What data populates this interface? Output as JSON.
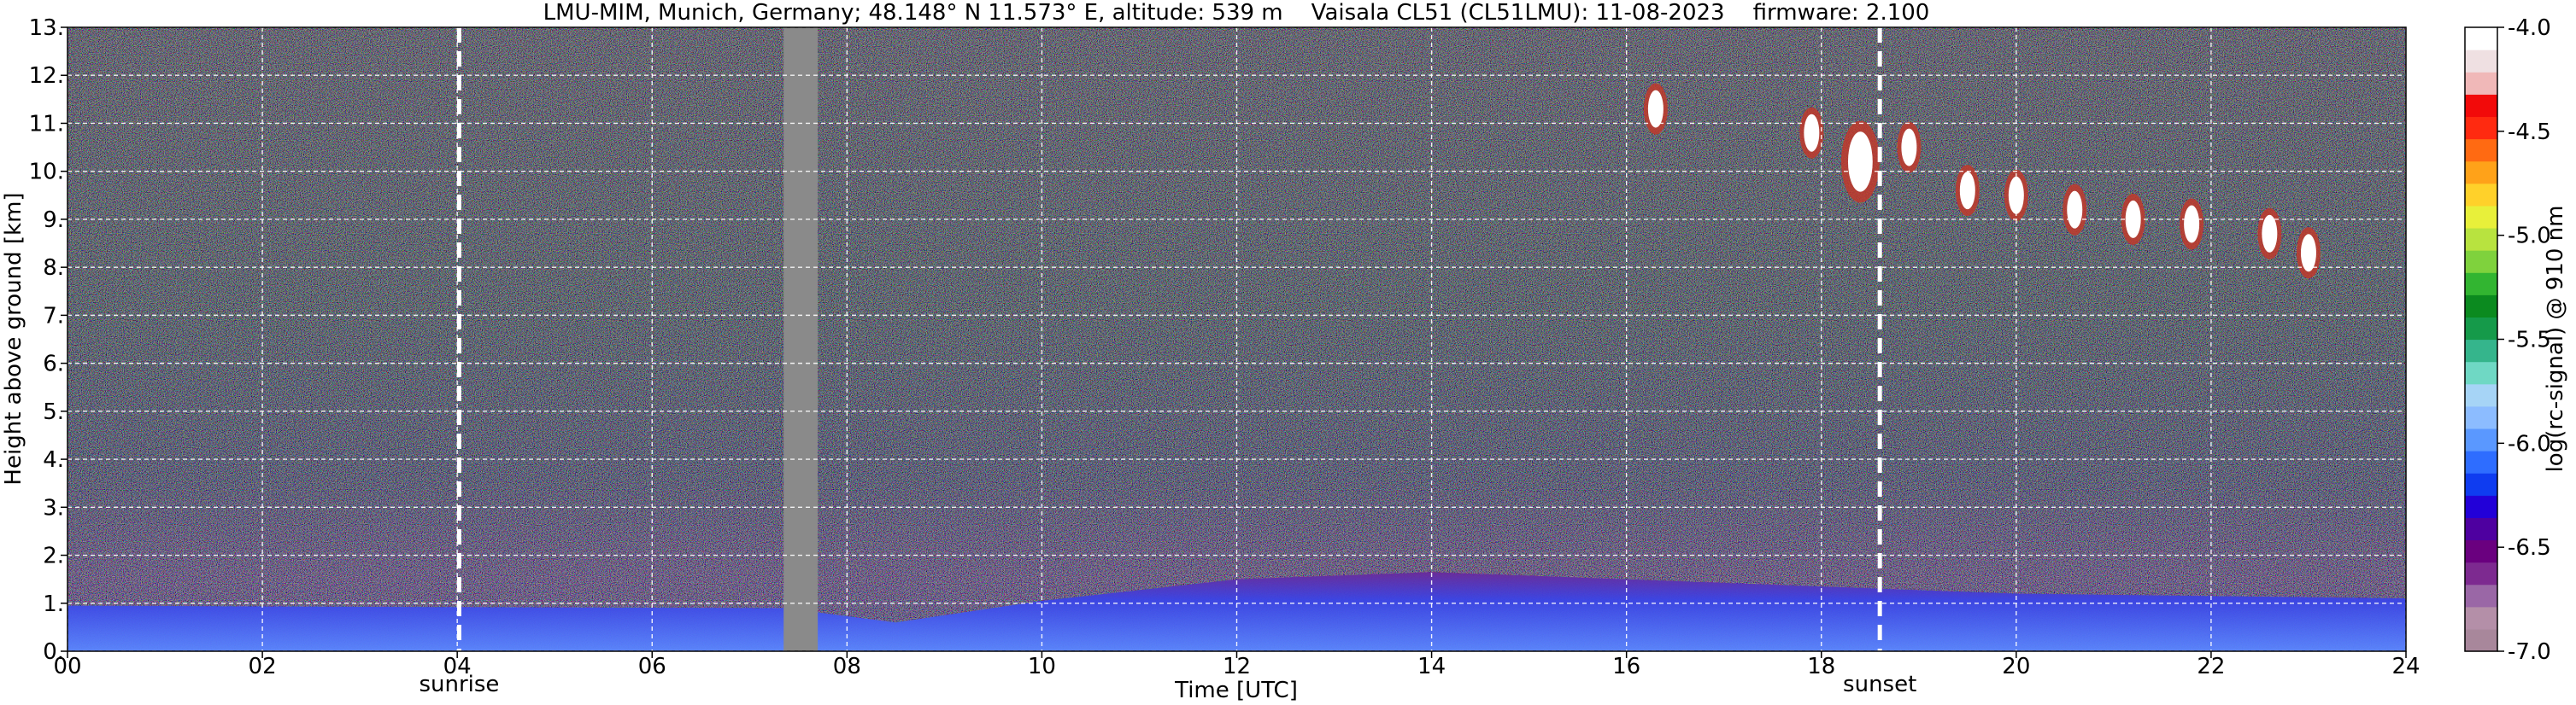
{
  "chart_data": {
    "type": "heatmap",
    "title": "LMU-MIM, Munich, Germany; 48.148° N 11.573° E, altitude: 539 m    Vaisala CL51 (CL51LMU): 11-08-2023    firmware: 2.100",
    "xlabel": "Time [UTC]",
    "ylabel": "Height above ground [km]",
    "xlim": [
      0,
      24
    ],
    "ylim": [
      0,
      13
    ],
    "x_ticks": [
      "00",
      "02",
      "04",
      "06",
      "08",
      "10",
      "12",
      "14",
      "16",
      "18",
      "20",
      "22",
      "24"
    ],
    "y_ticks": [
      "0.",
      "1.",
      "2.",
      "3.",
      "4.",
      "5.",
      "6.",
      "7.",
      "8.",
      "9.",
      "10.",
      "11.",
      "12.",
      "13."
    ],
    "grid": true,
    "annotations": [
      {
        "label": "sunrise",
        "time": 4.02
      },
      {
        "label": "sunset",
        "time": 18.6
      }
    ],
    "data_gap": {
      "start": 7.35,
      "end": 7.7
    },
    "colorbar": {
      "label": "log(rc-signal) @ 910 nm",
      "range": [
        -7.0,
        -4.0
      ],
      "ticks": [
        "-4.0",
        "-4.5",
        "-5.0",
        "-5.5",
        "-6.0",
        "-6.5",
        "-7.0"
      ],
      "colors": [
        "#a8879b",
        "#b48fa8",
        "#9a67a6",
        "#7d2a90",
        "#6a007f",
        "#4e00a0",
        "#2200d8",
        "#0f3cf0",
        "#2e6dff",
        "#5a98ff",
        "#8cbcff",
        "#a6d4f6",
        "#6fd8c4",
        "#35b58c",
        "#159a4a",
        "#0b8a1f",
        "#32b531",
        "#7fd23d",
        "#b8e33f",
        "#e8f03a",
        "#ffd12a",
        "#ffa219",
        "#ff6a12",
        "#ff2a10",
        "#f20a0a",
        "#f0b8b8",
        "#efe0e2",
        "#ffffff"
      ]
    },
    "features": {
      "boundary_layer_top_km": [
        {
          "time": 0,
          "value": 0.95
        },
        {
          "time": 4,
          "value": 0.92
        },
        {
          "time": 7.35,
          "value": 0.9
        },
        {
          "time": 8.5,
          "value": 0.6
        },
        {
          "time": 10,
          "value": 1.05
        },
        {
          "time": 12,
          "value": 1.5
        },
        {
          "time": 14,
          "value": 1.65
        },
        {
          "time": 16,
          "value": 1.5
        },
        {
          "time": 18,
          "value": 1.35
        },
        {
          "time": 20,
          "value": 1.2
        },
        {
          "time": 24,
          "value": 1.1
        }
      ],
      "cirrus_clouds": [
        {
          "time": 16.3,
          "height_km": 11.3
        },
        {
          "time": 17.9,
          "height_km": 10.8
        },
        {
          "time": 18.4,
          "height_km": 10.2
        },
        {
          "time": 18.9,
          "height_km": 10.5
        },
        {
          "time": 19.5,
          "height_km": 9.6
        },
        {
          "time": 20.0,
          "height_km": 9.5
        },
        {
          "time": 20.6,
          "height_km": 9.2
        },
        {
          "time": 21.2,
          "height_km": 9.0
        },
        {
          "time": 21.8,
          "height_km": 8.9
        },
        {
          "time": 22.6,
          "height_km": 8.7
        },
        {
          "time": 23.0,
          "height_km": 8.3
        }
      ]
    }
  }
}
